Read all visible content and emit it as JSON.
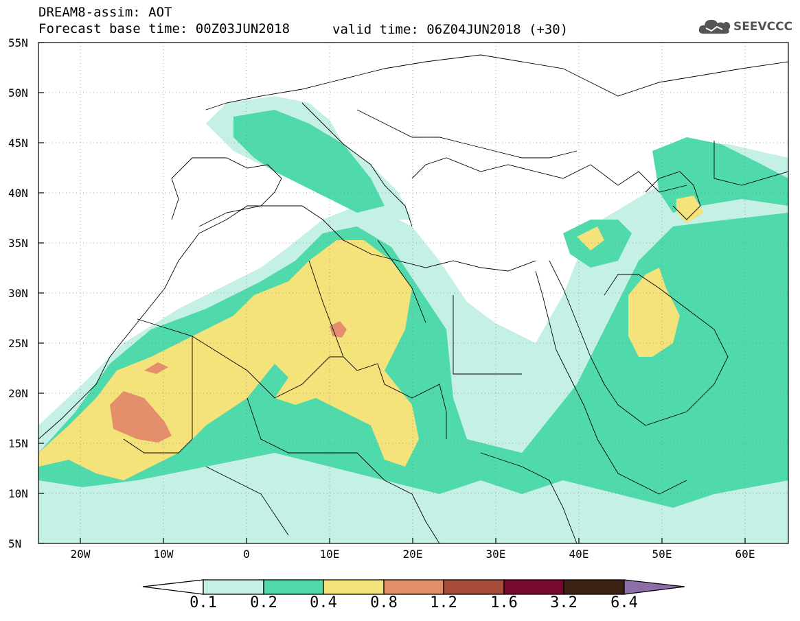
{
  "header": {
    "title": "DREAM8-assim: AOT",
    "base_time": "Forecast base time: 00Z03JUN2018",
    "valid_time": "valid time: 06Z04JUN2018 (+30)"
  },
  "logo": {
    "text": "SEEVCCC",
    "icon": "cloud-icon"
  },
  "map": {
    "lon_range": [
      -25,
      65
    ],
    "lat_range": [
      5,
      55
    ],
    "lat_labels": [
      "55N",
      "50N",
      "45N",
      "40N",
      "35N",
      "30N",
      "25N",
      "20N",
      "15N",
      "10N",
      "5N"
    ],
    "lon_labels": [
      "20W",
      "10W",
      "0",
      "10E",
      "20E",
      "30E",
      "40E",
      "50E",
      "60E"
    ],
    "grid": "dotted"
  },
  "colorbar": {
    "labels": [
      "0.1",
      "0.2",
      "0.4",
      "0.8",
      "1.2",
      "1.6",
      "3.2",
      "6.4"
    ],
    "colors": [
      "#ffffff",
      "#c4f0e6",
      "#50d9ab",
      "#f3e37a",
      "#e58e6b",
      "#a64a3a",
      "#760a30",
      "#3e2314",
      "#8b6fa6"
    ]
  },
  "colors": {
    "c1": "#c4f0e6",
    "c2": "#50d9ab",
    "c3": "#f3e37a",
    "c4": "#e58e6b"
  }
}
